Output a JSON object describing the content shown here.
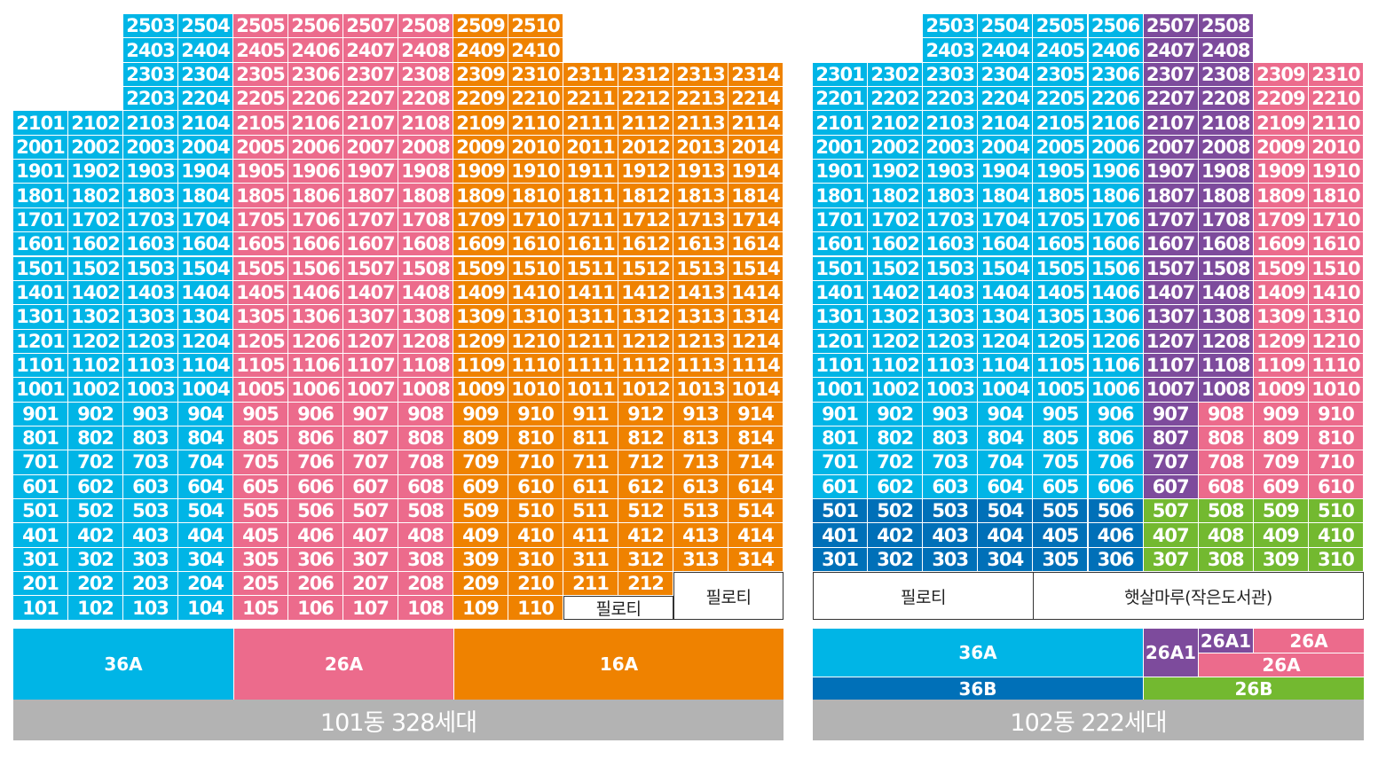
{
  "colors": {
    "type_36A": "#00b5e6",
    "type_36B": "#0070b8",
    "type_26A": "#ec6b8c",
    "type_26A1": "#7d4b9c",
    "type_26B": "#73b930",
    "type_16A": "#ef8200",
    "footer": "#b3b3b3"
  },
  "building_101": {
    "footer_label": "101동 328세대",
    "pilotis_labels": [
      "필로티",
      "필로티"
    ],
    "legend": [
      {
        "label": "36A",
        "type": "36A"
      },
      {
        "label": "26A",
        "type": "26A"
      },
      {
        "label": "16A",
        "type": "16A"
      }
    ],
    "column_types": [
      "36A",
      "36A",
      "36A",
      "36A",
      "26A",
      "26A",
      "26A",
      "26A",
      "16A",
      "16A",
      "16A",
      "16A",
      "16A",
      "16A"
    ],
    "floors": [
      {
        "floor": 25,
        "units": [
          3,
          4,
          5,
          6,
          7,
          8,
          9,
          10
        ]
      },
      {
        "floor": 24,
        "units": [
          3,
          4,
          5,
          6,
          7,
          8,
          9,
          10
        ]
      },
      {
        "floor": 23,
        "units": [
          3,
          4,
          5,
          6,
          7,
          8,
          9,
          10,
          11,
          12,
          13,
          14
        ]
      },
      {
        "floor": 22,
        "units": [
          3,
          4,
          5,
          6,
          7,
          8,
          9,
          10,
          11,
          12,
          13,
          14
        ]
      },
      {
        "floor": 21,
        "units": [
          1,
          2,
          3,
          4,
          5,
          6,
          7,
          8,
          9,
          10,
          11,
          12,
          13,
          14
        ]
      },
      {
        "floor": 20,
        "units": [
          1,
          2,
          3,
          4,
          5,
          6,
          7,
          8,
          9,
          10,
          11,
          12,
          13,
          14
        ]
      },
      {
        "floor": 19,
        "units": [
          1,
          2,
          3,
          4,
          5,
          6,
          7,
          8,
          9,
          10,
          11,
          12,
          13,
          14
        ]
      },
      {
        "floor": 18,
        "units": [
          1,
          2,
          3,
          4,
          5,
          6,
          7,
          8,
          9,
          10,
          11,
          12,
          13,
          14
        ]
      },
      {
        "floor": 17,
        "units": [
          1,
          2,
          3,
          4,
          5,
          6,
          7,
          8,
          9,
          10,
          11,
          12,
          13,
          14
        ]
      },
      {
        "floor": 16,
        "units": [
          1,
          2,
          3,
          4,
          5,
          6,
          7,
          8,
          9,
          10,
          11,
          12,
          13,
          14
        ]
      },
      {
        "floor": 15,
        "units": [
          1,
          2,
          3,
          4,
          5,
          6,
          7,
          8,
          9,
          10,
          11,
          12,
          13,
          14
        ]
      },
      {
        "floor": 14,
        "units": [
          1,
          2,
          3,
          4,
          5,
          6,
          7,
          8,
          9,
          10,
          11,
          12,
          13,
          14
        ]
      },
      {
        "floor": 13,
        "units": [
          1,
          2,
          3,
          4,
          5,
          6,
          7,
          8,
          9,
          10,
          11,
          12,
          13,
          14
        ]
      },
      {
        "floor": 12,
        "units": [
          1,
          2,
          3,
          4,
          5,
          6,
          7,
          8,
          9,
          10,
          11,
          12,
          13,
          14
        ]
      },
      {
        "floor": 11,
        "units": [
          1,
          2,
          3,
          4,
          5,
          6,
          7,
          8,
          9,
          10,
          11,
          12,
          13,
          14
        ]
      },
      {
        "floor": 10,
        "units": [
          1,
          2,
          3,
          4,
          5,
          6,
          7,
          8,
          9,
          10,
          11,
          12,
          13,
          14
        ]
      },
      {
        "floor": 9,
        "units": [
          1,
          2,
          3,
          4,
          5,
          6,
          7,
          8,
          9,
          10,
          11,
          12,
          13,
          14
        ]
      },
      {
        "floor": 8,
        "units": [
          1,
          2,
          3,
          4,
          5,
          6,
          7,
          8,
          9,
          10,
          11,
          12,
          13,
          14
        ]
      },
      {
        "floor": 7,
        "units": [
          1,
          2,
          3,
          4,
          5,
          6,
          7,
          8,
          9,
          10,
          11,
          12,
          13,
          14
        ]
      },
      {
        "floor": 6,
        "units": [
          1,
          2,
          3,
          4,
          5,
          6,
          7,
          8,
          9,
          10,
          11,
          12,
          13,
          14
        ]
      },
      {
        "floor": 5,
        "units": [
          1,
          2,
          3,
          4,
          5,
          6,
          7,
          8,
          9,
          10,
          11,
          12,
          13,
          14
        ]
      },
      {
        "floor": 4,
        "units": [
          1,
          2,
          3,
          4,
          5,
          6,
          7,
          8,
          9,
          10,
          11,
          12,
          13,
          14
        ]
      },
      {
        "floor": 3,
        "units": [
          1,
          2,
          3,
          4,
          5,
          6,
          7,
          8,
          9,
          10,
          11,
          12,
          13,
          14
        ]
      },
      {
        "floor": 2,
        "units": [
          1,
          2,
          3,
          4,
          5,
          6,
          7,
          8,
          9,
          10,
          11,
          12
        ]
      },
      {
        "floor": 1,
        "units": [
          1,
          2,
          3,
          4,
          5,
          6,
          7,
          8,
          9,
          10
        ]
      }
    ]
  },
  "building_102": {
    "footer_label": "102동 222세대",
    "pilotis_labels": [
      "필로티",
      "햇살마루(작은도서관)"
    ],
    "legend": [
      {
        "label": "36A",
        "type": "36A"
      },
      {
        "label": "36B",
        "type": "36B"
      },
      {
        "label": "26A1",
        "type": "26A1"
      },
      {
        "label": "26A1",
        "type": "26A1"
      },
      {
        "label": "26A",
        "type": "26A"
      },
      {
        "label": "26A",
        "type": "26A"
      },
      {
        "label": "26B",
        "type": "26B"
      }
    ],
    "column_types_upper": [
      "36A",
      "36A",
      "36A",
      "36A",
      "36A",
      "36A",
      "26A1",
      "26A1",
      "26A",
      "26A"
    ],
    "column_types_mid": [
      "36A",
      "36A",
      "36A",
      "36A",
      "36A",
      "36A",
      "26A1",
      "26A",
      "26A",
      "26A"
    ],
    "column_types_low": [
      "36B",
      "36B",
      "36B",
      "36B",
      "36B",
      "36B",
      "26B",
      "26B",
      "26B",
      "26B"
    ],
    "floors": [
      {
        "floor": 25,
        "units": [
          3,
          4,
          5,
          6,
          7,
          8
        ]
      },
      {
        "floor": 24,
        "units": [
          3,
          4,
          5,
          6,
          7,
          8
        ]
      },
      {
        "floor": 23,
        "units": [
          1,
          2,
          3,
          4,
          5,
          6,
          7,
          8,
          9,
          10
        ]
      },
      {
        "floor": 22,
        "units": [
          1,
          2,
          3,
          4,
          5,
          6,
          7,
          8,
          9,
          10
        ]
      },
      {
        "floor": 21,
        "units": [
          1,
          2,
          3,
          4,
          5,
          6,
          7,
          8,
          9,
          10
        ]
      },
      {
        "floor": 20,
        "units": [
          1,
          2,
          3,
          4,
          5,
          6,
          7,
          8,
          9,
          10
        ]
      },
      {
        "floor": 19,
        "units": [
          1,
          2,
          3,
          4,
          5,
          6,
          7,
          8,
          9,
          10
        ]
      },
      {
        "floor": 18,
        "units": [
          1,
          2,
          3,
          4,
          5,
          6,
          7,
          8,
          9,
          10
        ]
      },
      {
        "floor": 17,
        "units": [
          1,
          2,
          3,
          4,
          5,
          6,
          7,
          8,
          9,
          10
        ]
      },
      {
        "floor": 16,
        "units": [
          1,
          2,
          3,
          4,
          5,
          6,
          7,
          8,
          9,
          10
        ]
      },
      {
        "floor": 15,
        "units": [
          1,
          2,
          3,
          4,
          5,
          6,
          7,
          8,
          9,
          10
        ]
      },
      {
        "floor": 14,
        "units": [
          1,
          2,
          3,
          4,
          5,
          6,
          7,
          8,
          9,
          10
        ]
      },
      {
        "floor": 13,
        "units": [
          1,
          2,
          3,
          4,
          5,
          6,
          7,
          8,
          9,
          10
        ]
      },
      {
        "floor": 12,
        "units": [
          1,
          2,
          3,
          4,
          5,
          6,
          7,
          8,
          9,
          10
        ]
      },
      {
        "floor": 11,
        "units": [
          1,
          2,
          3,
          4,
          5,
          6,
          7,
          8,
          9,
          10
        ]
      },
      {
        "floor": 10,
        "units": [
          1,
          2,
          3,
          4,
          5,
          6,
          7,
          8,
          9,
          10
        ]
      },
      {
        "floor": 9,
        "units": [
          1,
          2,
          3,
          4,
          5,
          6,
          7,
          8,
          9,
          10
        ]
      },
      {
        "floor": 8,
        "units": [
          1,
          2,
          3,
          4,
          5,
          6,
          7,
          8,
          9,
          10
        ]
      },
      {
        "floor": 7,
        "units": [
          1,
          2,
          3,
          4,
          5,
          6,
          7,
          8,
          9,
          10
        ]
      },
      {
        "floor": 6,
        "units": [
          1,
          2,
          3,
          4,
          5,
          6,
          7,
          8,
          9,
          10
        ]
      },
      {
        "floor": 5,
        "units": [
          1,
          2,
          3,
          4,
          5,
          6,
          7,
          8,
          9,
          10
        ]
      },
      {
        "floor": 4,
        "units": [
          1,
          2,
          3,
          4,
          5,
          6,
          7,
          8,
          9,
          10
        ]
      },
      {
        "floor": 3,
        "units": [
          1,
          2,
          3,
          4,
          5,
          6,
          7,
          8,
          9,
          10
        ]
      }
    ]
  }
}
